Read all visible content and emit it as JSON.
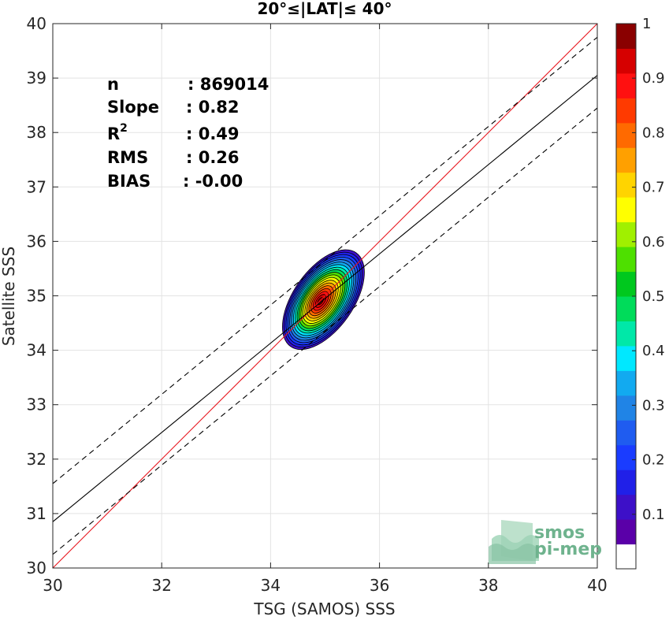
{
  "chart_data": {
    "type": "contour-density",
    "title": "20°≤|LAT|≤ 40°",
    "xlabel": "TSG (SAMOS) SSS",
    "ylabel": "Satellite SSS",
    "xlim": [
      30,
      40
    ],
    "ylim": [
      30,
      40
    ],
    "xticks": [
      30,
      32,
      34,
      36,
      38,
      40
    ],
    "yticks": [
      30,
      31,
      32,
      33,
      34,
      35,
      36,
      37,
      38,
      39,
      40
    ],
    "grid": true,
    "stats": [
      {
        "label": "n",
        "value": ": 869014"
      },
      {
        "label": "Slope",
        "value": ": 0.82"
      },
      {
        "label": "R",
        "sup": "2",
        "value": ": 0.49"
      },
      {
        "label": "RMS",
        "value": ": 0.26"
      },
      {
        "label": "BIAS",
        "value": ": -0.00"
      }
    ],
    "lines": [
      {
        "name": "one-to-one",
        "color": "#e8141c",
        "dash": false,
        "points": [
          [
            30,
            30
          ],
          [
            40,
            40
          ]
        ]
      },
      {
        "name": "regression",
        "color": "#000000",
        "dash": false,
        "points": [
          [
            30,
            30.85
          ],
          [
            40,
            39.05
          ]
        ]
      },
      {
        "name": "regression-upper",
        "color": "#000000",
        "dash": true,
        "points": [
          [
            30,
            31.55
          ],
          [
            40,
            39.75
          ]
        ]
      },
      {
        "name": "regression-lower",
        "color": "#000000",
        "dash": true,
        "points": [
          [
            30,
            30.25
          ],
          [
            40,
            38.45
          ]
        ]
      }
    ],
    "density": {
      "center": [
        34.97,
        34.93
      ],
      "angle_deg": 55,
      "outer_semi_major": 1.05,
      "outer_semi_minor": 0.55,
      "levels": [
        0.05,
        0.1,
        0.15,
        0.2,
        0.25,
        0.3,
        0.35,
        0.4,
        0.45,
        0.5,
        0.55,
        0.6,
        0.65,
        0.7,
        0.75,
        0.8,
        0.85,
        0.9,
        0.95
      ]
    },
    "colorbar": {
      "range": [
        0,
        1
      ],
      "ticks": [
        "0.1",
        "0.2",
        "0.3",
        "0.4",
        "0.5",
        "0.6",
        "0.7",
        "0.8",
        "0.9",
        "1"
      ],
      "tick_values": [
        0.1,
        0.2,
        0.3,
        0.4,
        0.5,
        0.6,
        0.7,
        0.8,
        0.9,
        1.0
      ],
      "colors": [
        "#ffffff",
        "#5a00a8",
        "#3d10c8",
        "#2020e8",
        "#1a3cff",
        "#1f5cf0",
        "#2084e6",
        "#12aaf0",
        "#00e8ff",
        "#00e8a8",
        "#00dc5a",
        "#00c81e",
        "#4ee000",
        "#a0f000",
        "#ffff00",
        "#ffd400",
        "#ffa000",
        "#ff6a00",
        "#ff3a00",
        "#ff1010",
        "#d60000",
        "#8a0000"
      ]
    }
  },
  "logo": {
    "line1": "smos",
    "line2": "pi-mep"
  }
}
